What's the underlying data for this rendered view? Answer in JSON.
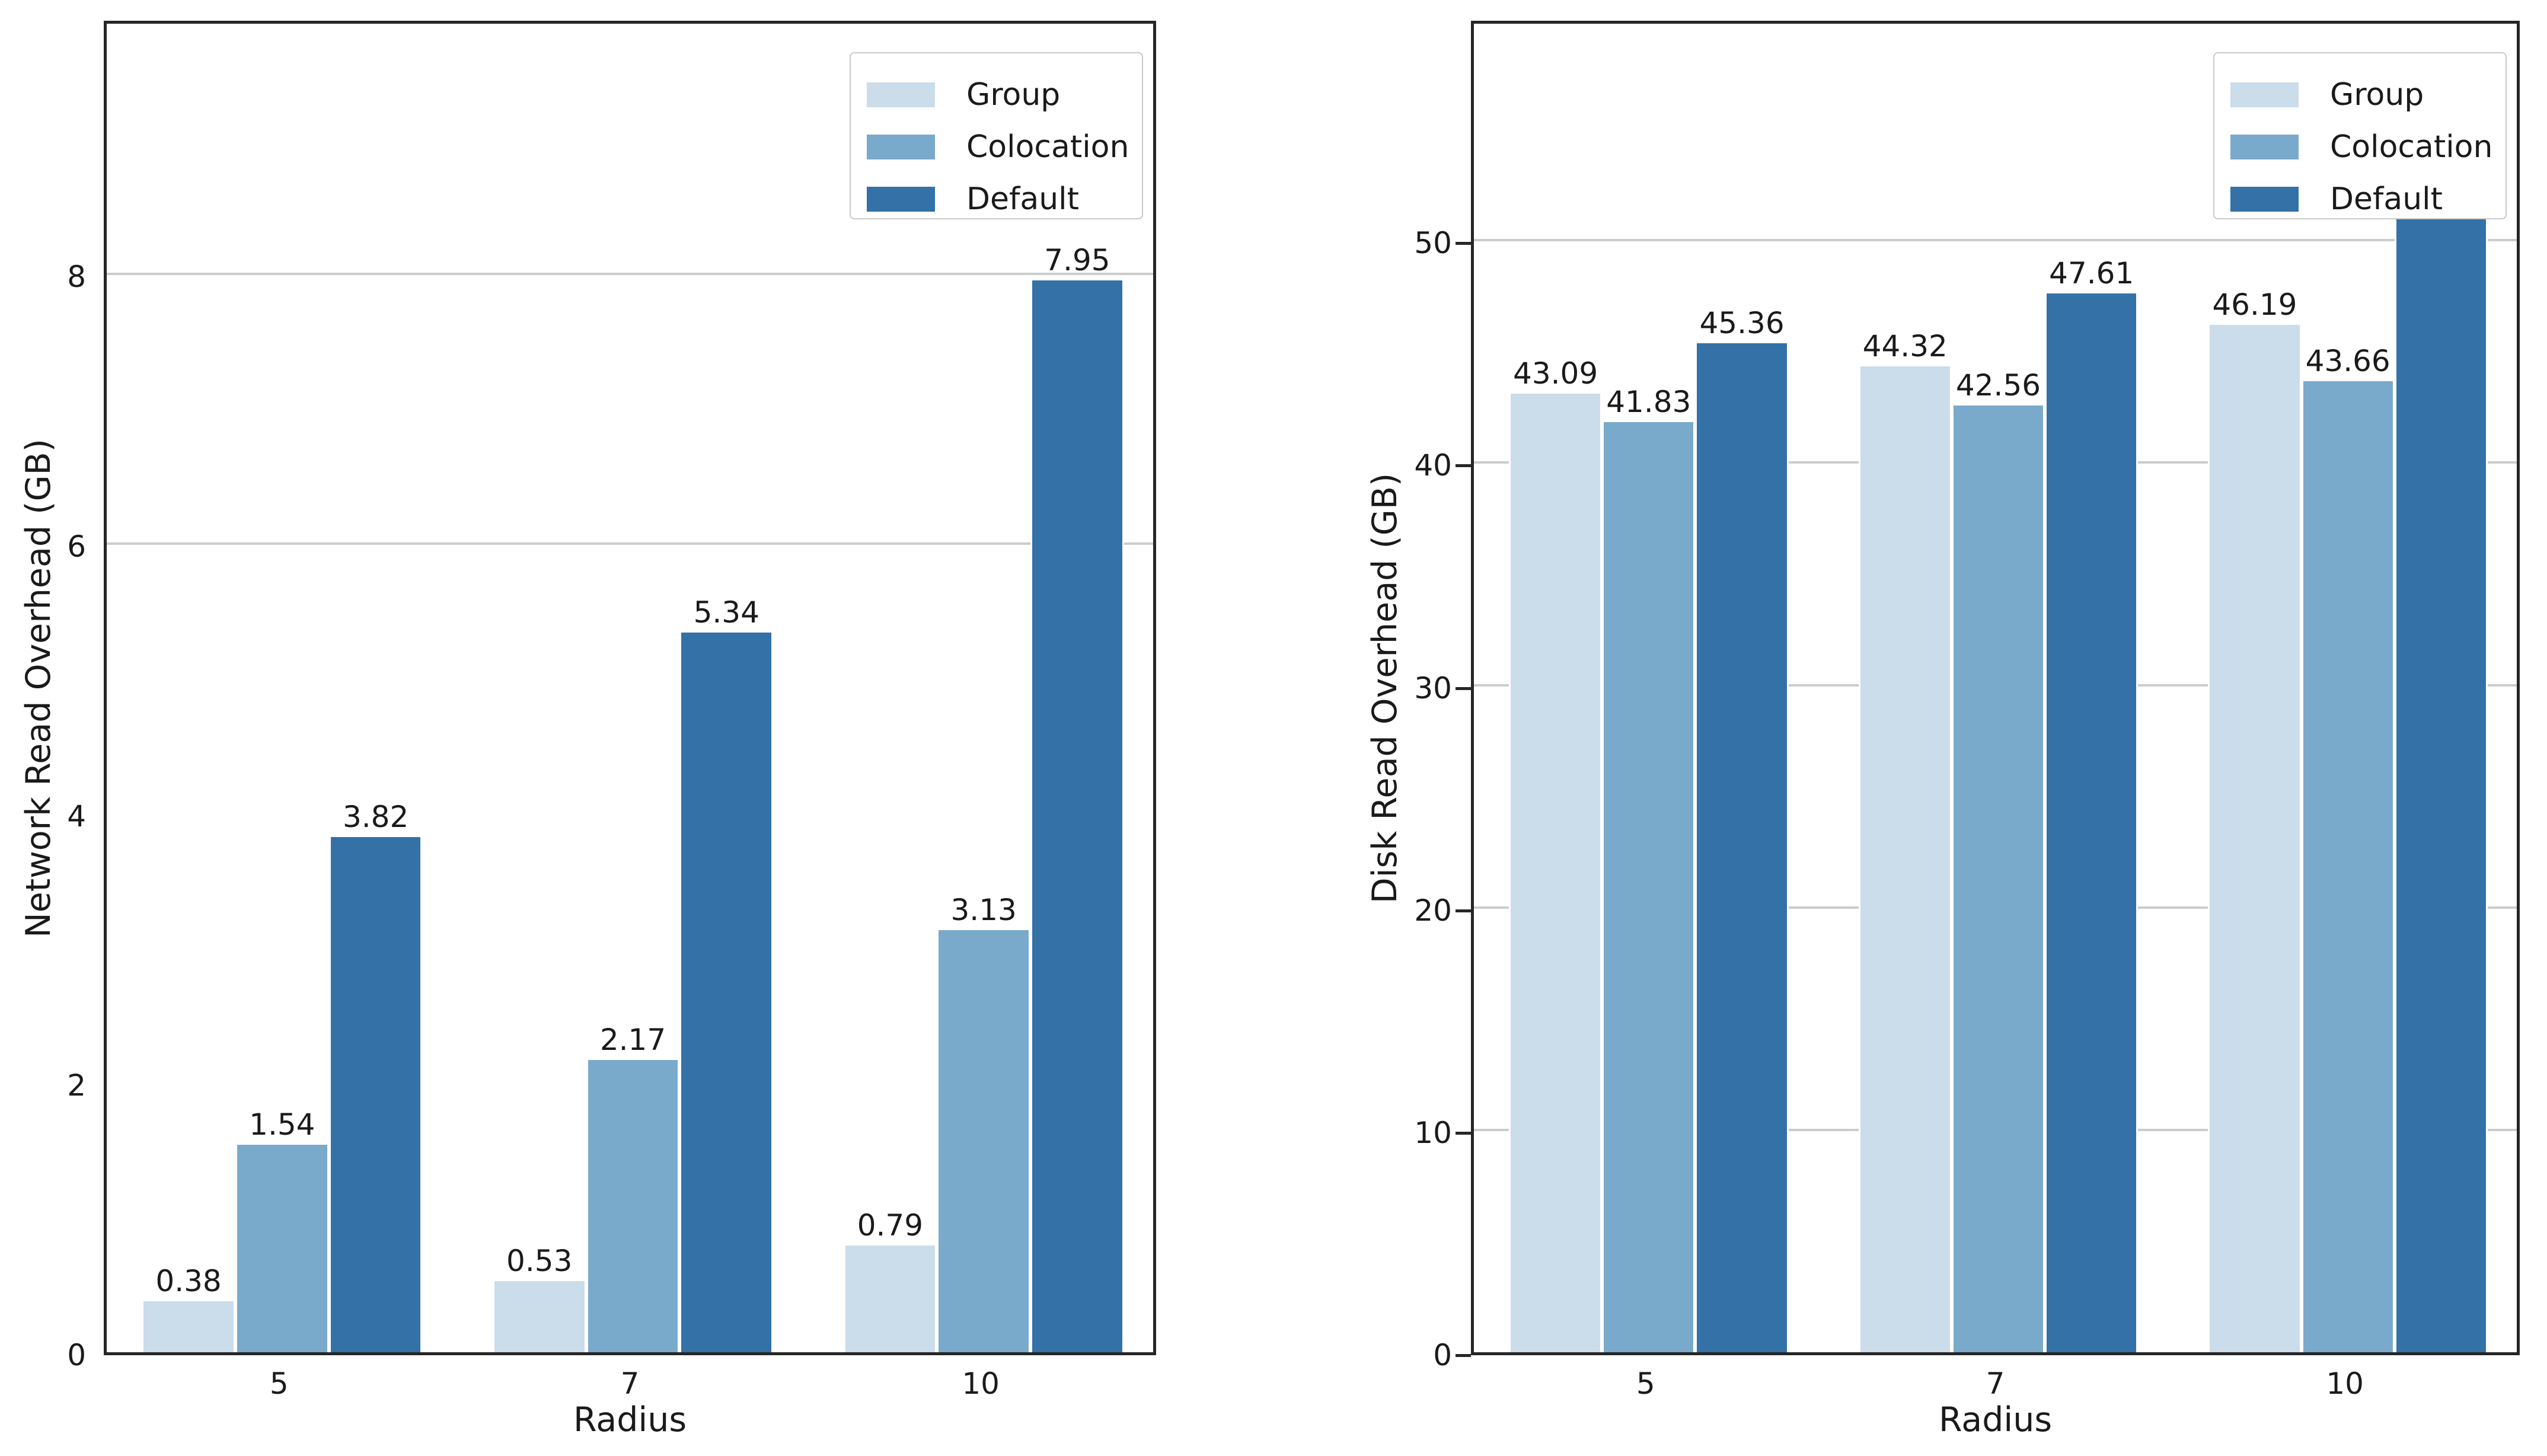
{
  "figure": {
    "background": "#ffffff"
  },
  "style": {
    "series_colors": [
      "#cbdcea",
      "#79aacb",
      "#3371a7"
    ],
    "grid_color": "#cccccc",
    "spine_color": "#262626",
    "text_color": "#1a1a1a",
    "legend_border_color": "#c9c9c9",
    "legend_background": "#ffffff"
  },
  "chart_data": [
    {
      "type": "bar",
      "title": "",
      "xlabel": "Radius",
      "ylabel": "Network Read Overhead (GB)",
      "categories": [
        "5",
        "7",
        "10"
      ],
      "series": [
        {
          "name": "Group",
          "values": [
            0.38,
            0.53,
            0.79
          ]
        },
        {
          "name": "Colocation",
          "values": [
            1.54,
            2.17,
            3.13
          ]
        },
        {
          "name": "Default",
          "values": [
            3.82,
            5.34,
            7.95
          ]
        }
      ],
      "value_labels": [
        [
          "0.38",
          "0.53",
          "0.79"
        ],
        [
          "1.54",
          "2.17",
          "3.13"
        ],
        [
          "3.82",
          "5.34",
          "7.95"
        ]
      ],
      "yticks": [
        0,
        2,
        4,
        6,
        8
      ],
      "grid_ticks": [
        6,
        8
      ],
      "ylim": [
        0,
        9.9
      ],
      "y_tick_marks": false,
      "grid": true,
      "legend_position": "upper-right",
      "legend_labels": [
        "Group",
        "Colocation",
        "Default"
      ]
    },
    {
      "type": "bar",
      "title": "",
      "xlabel": "Radius",
      "ylabel": "Disk Read Overhead (GB)",
      "categories": [
        "5",
        "7",
        "10"
      ],
      "series": [
        {
          "name": "Group",
          "values": [
            43.09,
            44.32,
            46.19
          ]
        },
        {
          "name": "Colocation",
          "values": [
            41.83,
            42.56,
            43.66
          ]
        },
        {
          "name": "Default",
          "values": [
            45.36,
            47.61,
            51.12
          ]
        }
      ],
      "value_labels": [
        [
          "43.09",
          "44.32",
          "46.19"
        ],
        [
          "41.83",
          "42.56",
          "43.66"
        ],
        [
          "45.36",
          "47.61",
          "51.12"
        ]
      ],
      "yticks": [
        0,
        10,
        20,
        30,
        40,
        50
      ],
      "grid_ticks": [
        10,
        20,
        30,
        40,
        50
      ],
      "ylim": [
        0,
        60
      ],
      "y_tick_marks": true,
      "grid": true,
      "legend_position": "upper-right",
      "legend_labels": [
        "Group",
        "Colocation",
        "Default"
      ]
    }
  ]
}
